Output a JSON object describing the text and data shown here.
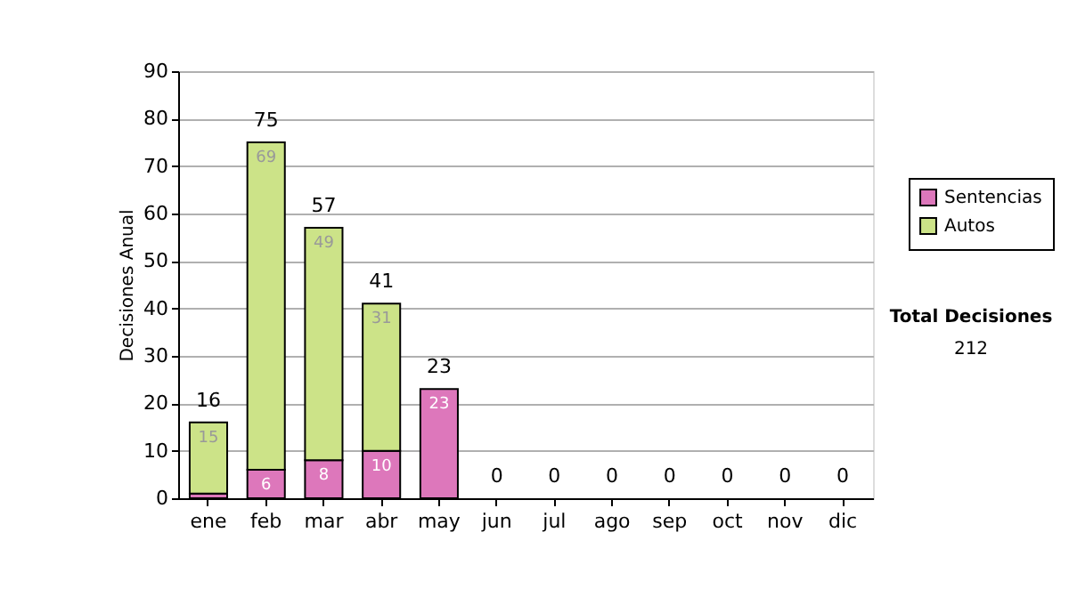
{
  "chart_data": {
    "type": "bar",
    "stacked": true,
    "ylabel": "Decisiones Anual",
    "categories": [
      "ene",
      "feb",
      "mar",
      "abr",
      "may",
      "jun",
      "jul",
      "ago",
      "sep",
      "oct",
      "nov",
      "dic"
    ],
    "series": [
      {
        "name": "Sentencias",
        "color": "#dd77bb",
        "values": [
          1,
          6,
          8,
          10,
          23,
          0,
          0,
          0,
          0,
          0,
          0,
          0
        ],
        "value_labels": [
          null,
          "6",
          "8",
          "10",
          "23",
          null,
          null,
          null,
          null,
          null,
          null,
          null
        ]
      },
      {
        "name": "Autos",
        "color": "#cce388",
        "values": [
          15,
          69,
          49,
          31,
          0,
          0,
          0,
          0,
          0,
          0,
          0,
          0
        ],
        "value_labels": [
          "15",
          "69",
          "49",
          "31",
          null,
          null,
          null,
          null,
          null,
          null,
          null,
          null
        ]
      }
    ],
    "totals": [
      "16",
      "75",
      "57",
      "41",
      "23",
      "0",
      "0",
      "0",
      "0",
      "0",
      "0",
      "0"
    ],
    "ylim": [
      0,
      90
    ],
    "yticks": [
      0,
      10,
      20,
      30,
      40,
      50,
      60,
      70,
      80,
      90
    ],
    "grid": "y",
    "legend": "right",
    "annotations": [
      "Total Decisiones",
      "212"
    ]
  }
}
